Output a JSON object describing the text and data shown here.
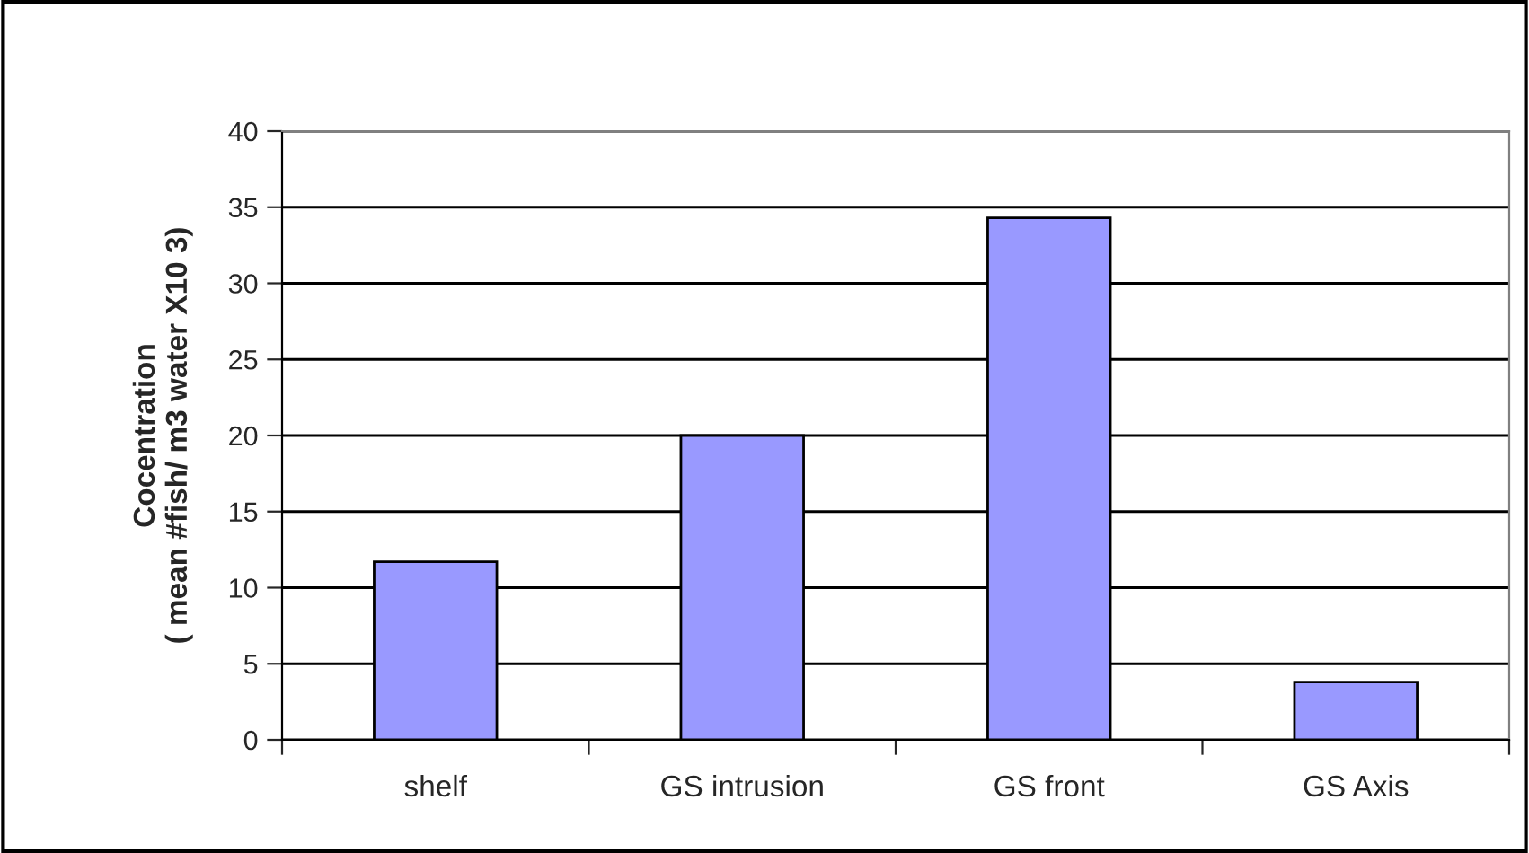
{
  "chart_data": {
    "type": "bar",
    "ylabel": "Cocentration\n( mean #fish/ m3 water X10 3)",
    "categories": [
      "shelf",
      "GS intrusion",
      "GS front",
      "GS Axis"
    ],
    "values": [
      11.7,
      20,
      34.3,
      3.8
    ],
    "color": "#9999ff",
    "ylim": [
      0,
      40
    ],
    "yticks": [
      0,
      5,
      10,
      15,
      20,
      25,
      30,
      35,
      40
    ],
    "grid": "y",
    "legend": false
  }
}
